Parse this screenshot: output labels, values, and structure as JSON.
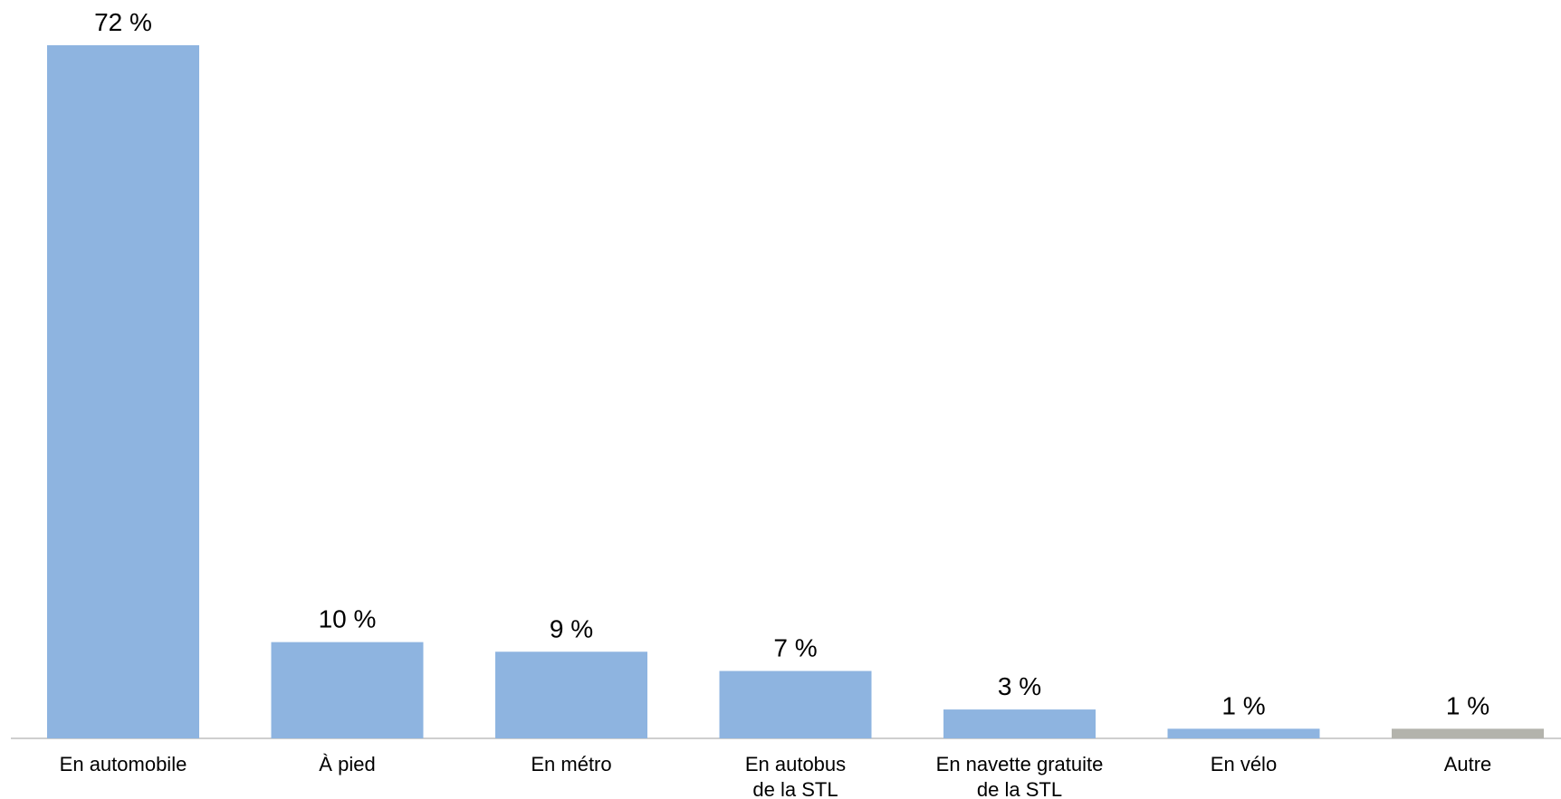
{
  "chart_data": {
    "type": "bar",
    "title": "",
    "xlabel": "",
    "ylabel": "",
    "ylim": [
      0,
      72
    ],
    "grid": false,
    "categories": [
      [
        "En automobile"
      ],
      [
        "À pied"
      ],
      [
        "En métro"
      ],
      [
        "En autobus",
        "de la STL"
      ],
      [
        "En navette gratuite",
        "de la STL"
      ],
      [
        "En vélo"
      ],
      [
        "Autre"
      ]
    ],
    "values": [
      72,
      10,
      9,
      7,
      3,
      1,
      1
    ],
    "data_labels": [
      "72 %",
      "10 %",
      "9 %",
      "7 %",
      "3 %",
      "1 %",
      "1 %"
    ],
    "colors": [
      "#8eb4e0",
      "#8eb4e0",
      "#8eb4e0",
      "#8eb4e0",
      "#8eb4e0",
      "#8eb4e0",
      "#b3b3ac"
    ],
    "axis_color": "#bfbfbf"
  }
}
